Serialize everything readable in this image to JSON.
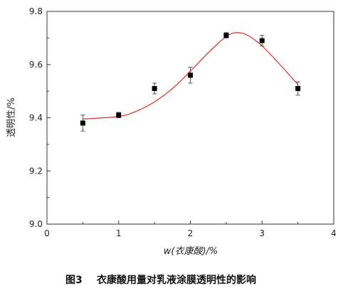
{
  "chart_data": {
    "type": "scatter",
    "title": "",
    "xlabel": "w(衣康酸)/%",
    "ylabel": "透明性/%",
    "xlim": [
      0,
      4
    ],
    "ylim": [
      9.0,
      9.8
    ],
    "xticks": [
      "0",
      "1",
      "2",
      "3",
      "4"
    ],
    "yticks": [
      "9.0",
      "9.2",
      "9.4",
      "9.6",
      "9.8"
    ],
    "grid": false,
    "series": [
      {
        "color": "#000000",
        "marker": "square",
        "x": [
          0.5,
          1.0,
          1.5,
          2.0,
          2.5,
          3.0,
          3.5
        ],
        "y": [
          9.38,
          9.41,
          9.51,
          9.56,
          9.71,
          9.69,
          9.51
        ],
        "error": [
          0.03,
          0.01,
          0.02,
          0.03,
          0.01,
          0.02,
          0.025
        ]
      }
    ],
    "fit_curve": {
      "color": "#d9302a",
      "x": [
        0.5,
        1.0,
        1.25,
        1.5,
        1.75,
        2.0,
        2.25,
        2.5,
        2.65,
        2.8,
        3.0,
        3.25,
        3.5
      ],
      "y": [
        9.395,
        9.405,
        9.425,
        9.46,
        9.51,
        9.575,
        9.645,
        9.705,
        9.72,
        9.71,
        9.67,
        9.6,
        9.525
      ]
    }
  },
  "caption": {
    "label": "图3",
    "text": "衣康酸用量对乳液涂膜透明性的影响"
  }
}
